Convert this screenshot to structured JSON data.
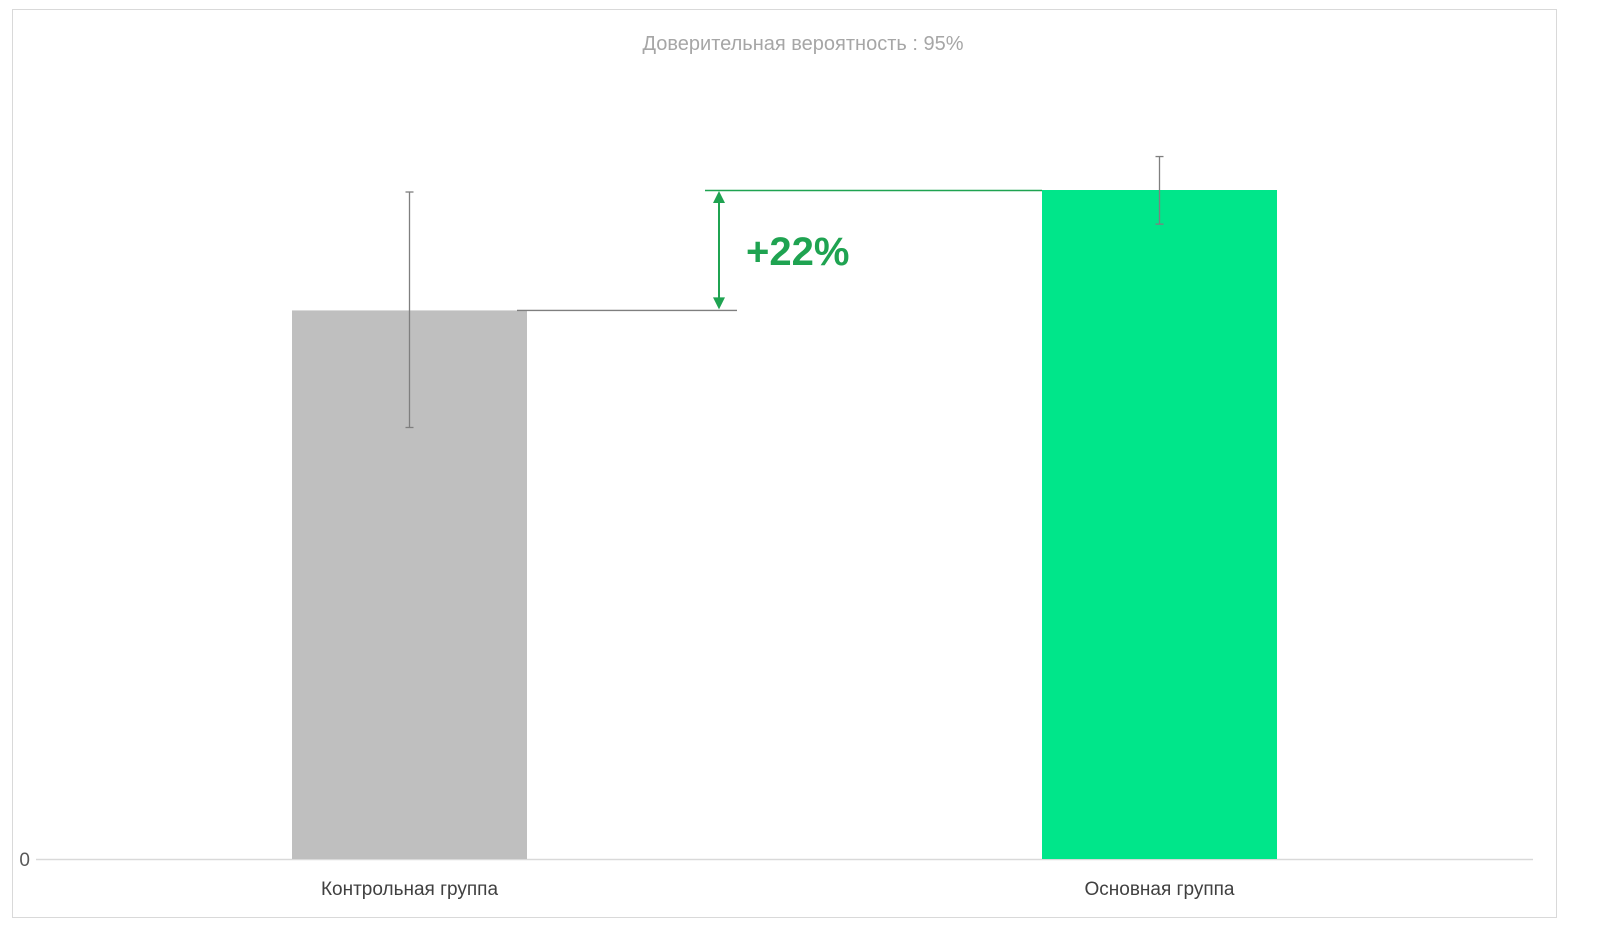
{
  "chart_data": {
    "type": "bar",
    "title": "Доверительная вероятность : 95%",
    "categories": [
      "Контрольная группа",
      "Основная группа"
    ],
    "values": [
      0.82,
      1.0
    ],
    "error_bars": [
      {
        "low": 0.645,
        "high": 0.997
      },
      {
        "low": 0.949,
        "high": 1.05
      }
    ],
    "y_tick_labels": [
      "0"
    ],
    "ylim": [
      0,
      1.08
    ],
    "annotation": {
      "label": "+22%",
      "from_category": 0,
      "to_category": 1
    },
    "grid": false,
    "legend": "none",
    "colors": {
      "bars": [
        "#bfbfbf",
        "#00e68a"
      ],
      "annotation": "#1fa351",
      "error_bar": "#7f7f7f",
      "axis": "#d9d9d9",
      "title": "#a6a6a6",
      "category_label": "#404040"
    }
  }
}
